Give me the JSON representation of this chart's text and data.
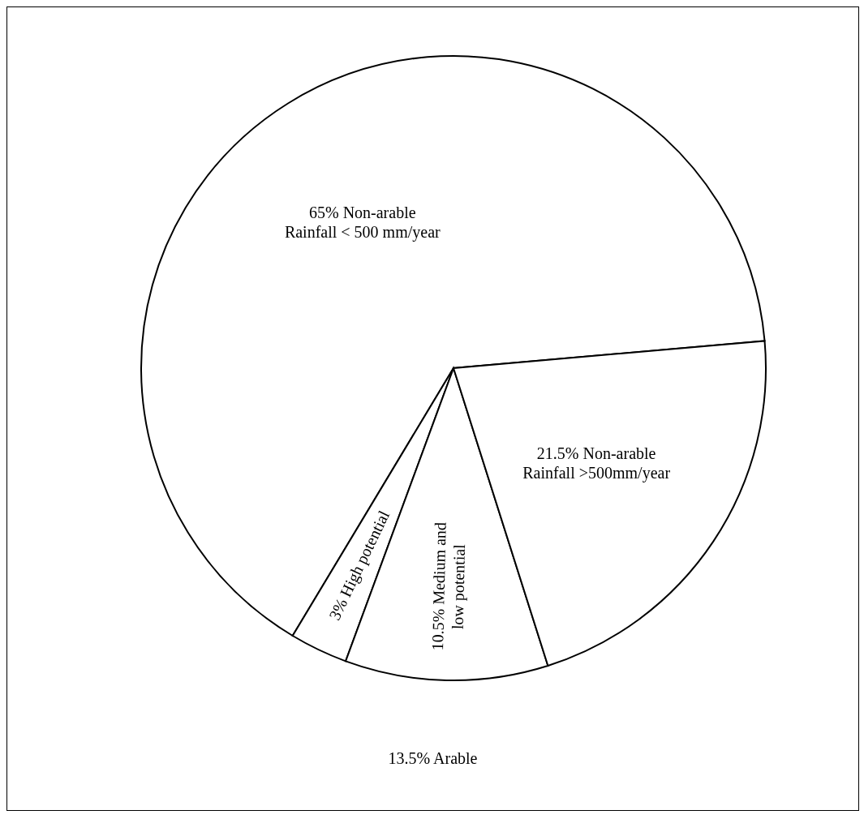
{
  "chart_data": {
    "type": "pie",
    "categories": [
      "Non-arable Rainfall < 500 mm/year",
      "High potential",
      "Medium and low potential",
      "Non-arable Rainfall >500mm/year"
    ],
    "values": [
      65,
      3,
      10.5,
      21.5
    ],
    "value_labels": [
      "65%",
      "3%",
      "10.5%",
      "21.5%"
    ],
    "colors": [
      "#ffffff",
      "#ffffff",
      "#ffffff",
      "#ffffff"
    ],
    "annotations": [
      "13.5% Arable"
    ]
  }
}
